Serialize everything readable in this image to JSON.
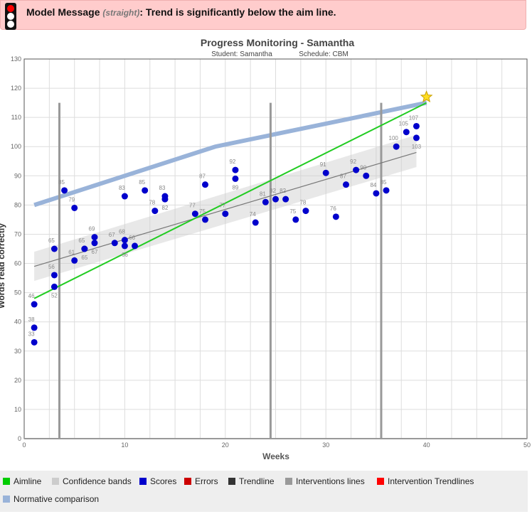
{
  "message": {
    "prefix": "Model Message",
    "model": "(straight)",
    "text": ": Trend is significantly below the aim line.",
    "light_state": "red"
  },
  "chart_data": {
    "type": "scatter",
    "title": "Progress Monitoring - Samantha",
    "subtitle_student": "Student: Samantha",
    "subtitle_schedule": "Schedule: CBM",
    "xlabel": "Weeks",
    "ylabel": "Words read correctly",
    "xlim": [
      0,
      50
    ],
    "ylim": [
      0,
      130
    ],
    "xticks": [
      0,
      10,
      20,
      30,
      40,
      50
    ],
    "yticks": [
      0,
      10,
      20,
      30,
      40,
      50,
      60,
      70,
      80,
      90,
      100,
      110,
      120,
      130
    ],
    "grid": true,
    "scores": [
      [
        1,
        46
      ],
      [
        1,
        38
      ],
      [
        1,
        33
      ],
      [
        3,
        65
      ],
      [
        3,
        56
      ],
      [
        3,
        52
      ],
      [
        4,
        85
      ],
      [
        5,
        79
      ],
      [
        5,
        61
      ],
      [
        6,
        65
      ],
      [
        6,
        65
      ],
      [
        7,
        69
      ],
      [
        7,
        67
      ],
      [
        9,
        67
      ],
      [
        10,
        68
      ],
      [
        10,
        66
      ],
      [
        10,
        83
      ],
      [
        11,
        66
      ],
      [
        12,
        85
      ],
      [
        13,
        78
      ],
      [
        14,
        83
      ],
      [
        14,
        82
      ],
      [
        17,
        77
      ],
      [
        18,
        87
      ],
      [
        18,
        75
      ],
      [
        20,
        77
      ],
      [
        21,
        92
      ],
      [
        21,
        89
      ],
      [
        23,
        74
      ],
      [
        24,
        81
      ],
      [
        25,
        82
      ],
      [
        26,
        82
      ],
      [
        27,
        75
      ],
      [
        28,
        78
      ],
      [
        30,
        91
      ],
      [
        31,
        76
      ],
      [
        32,
        87
      ],
      [
        33,
        92
      ],
      [
        34,
        90
      ],
      [
        35,
        84
      ],
      [
        36,
        85
      ],
      [
        37,
        100
      ],
      [
        38,
        105
      ],
      [
        39,
        107
      ],
      [
        39,
        103
      ]
    ],
    "aimline": [
      [
        1,
        48
      ],
      [
        40,
        115
      ]
    ],
    "goal": [
      40,
      117
    ],
    "trendline": [
      [
        1,
        59
      ],
      [
        39,
        98
      ]
    ],
    "confidence_band": {
      "x": [
        1,
        39
      ],
      "lower": [
        54,
        93
      ],
      "upper": [
        64,
        104
      ]
    },
    "normative": [
      [
        1,
        80
      ],
      [
        19,
        100
      ],
      [
        40,
        115
      ]
    ],
    "intervention_lines": [
      3.5,
      24.5,
      35.5
    ],
    "intervention_line_top": 115,
    "legend": [
      {
        "label": "Aimline",
        "color": "#00cc00"
      },
      {
        "label": "Confidence bands",
        "color": "#cccccc"
      },
      {
        "label": "Scores",
        "color": "#0000cc"
      },
      {
        "label": "Errors",
        "color": "#cc0000"
      },
      {
        "label": "Trendline",
        "color": "#333333"
      },
      {
        "label": "Interventions lines",
        "color": "#999999"
      },
      {
        "label": "Intervention Trendlines",
        "color": "#ff0000"
      },
      {
        "label": "Normative comparison",
        "color": "#99b3d9"
      }
    ]
  }
}
